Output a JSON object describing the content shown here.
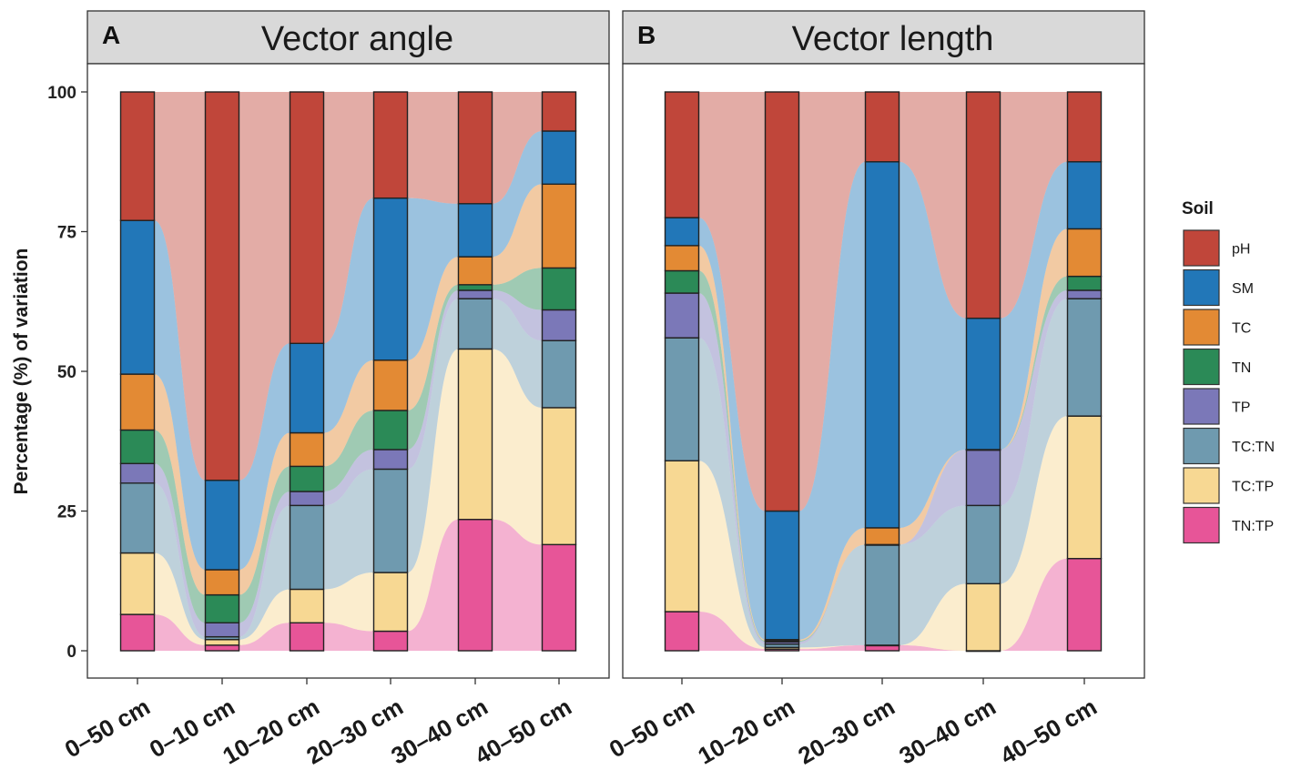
{
  "chart_data": {
    "type": "alluvial-stacked-bar",
    "ylabel": "Percentage (%) of variation",
    "ylim": [
      0,
      100
    ],
    "yticks": [
      "0",
      "25",
      "50",
      "75",
      "100"
    ],
    "legend": {
      "title": "Soil",
      "entries": [
        {
          "name": "pH",
          "color": "#C0463A"
        },
        {
          "name": "SM",
          "color": "#2277B8"
        },
        {
          "name": "TC",
          "color": "#E38A34"
        },
        {
          "name": "TN",
          "color": "#2B8A57"
        },
        {
          "name": "TP",
          "color": "#7B78B8"
        },
        {
          "name": "TC:TN",
          "color": "#6F9AAF"
        },
        {
          "name": "TC:TP",
          "color": "#F7D893"
        },
        {
          "name": "TN:TP",
          "color": "#E75598"
        }
      ]
    },
    "panels": [
      {
        "letter": "A",
        "title": "Vector angle",
        "categories": [
          "0–50 cm",
          "0–10 cm",
          "10–20 cm",
          "20–30 cm",
          "30–40 cm",
          "40–50 cm"
        ],
        "series": [
          {
            "name": "TN:TP",
            "values": [
              6.5,
              1.0,
              5.0,
              3.5,
              23.5,
              19.0
            ]
          },
          {
            "name": "TC:TP",
            "values": [
              11.0,
              1.0,
              6.0,
              10.5,
              30.5,
              24.5
            ]
          },
          {
            "name": "TC:TN",
            "values": [
              12.5,
              0.5,
              15.0,
              18.5,
              9.0,
              12.0
            ]
          },
          {
            "name": "TP",
            "values": [
              3.5,
              2.5,
              2.5,
              3.5,
              1.5,
              5.5
            ]
          },
          {
            "name": "TN",
            "values": [
              6.0,
              5.0,
              4.5,
              7.0,
              1.0,
              7.5
            ]
          },
          {
            "name": "TC",
            "values": [
              10.0,
              4.5,
              6.0,
              9.0,
              5.0,
              15.0
            ]
          },
          {
            "name": "SM",
            "values": [
              27.5,
              16.0,
              16.0,
              29.0,
              9.5,
              9.5
            ]
          },
          {
            "name": "pH",
            "values": [
              23.0,
              69.5,
              45.0,
              19.0,
              20.0,
              7.0
            ]
          }
        ]
      },
      {
        "letter": "B",
        "title": "Vector length",
        "categories": [
          "0–50 cm",
          "10–20 cm",
          "20–30 cm",
          "30–40 cm",
          "40–50 cm"
        ],
        "series": [
          {
            "name": "TN:TP",
            "values": [
              7.0,
              0.3,
              1.0,
              0.0,
              16.5
            ]
          },
          {
            "name": "TC:TP",
            "values": [
              27.0,
              0.3,
              0.0,
              12.0,
              25.5
            ]
          },
          {
            "name": "TC:TN",
            "values": [
              22.0,
              0.6,
              18.0,
              14.0,
              21.0
            ]
          },
          {
            "name": "TP",
            "values": [
              8.0,
              0.4,
              0.0,
              10.0,
              1.5
            ]
          },
          {
            "name": "TN",
            "values": [
              4.0,
              0.2,
              0.0,
              0.0,
              2.5
            ]
          },
          {
            "name": "TC",
            "values": [
              4.5,
              0.2,
              3.0,
              0.0,
              8.5
            ]
          },
          {
            "name": "SM",
            "values": [
              5.0,
              23.0,
              65.5,
              23.5,
              12.0
            ]
          },
          {
            "name": "pH",
            "values": [
              22.5,
              75.0,
              12.5,
              40.5,
              12.5
            ]
          }
        ]
      }
    ]
  }
}
